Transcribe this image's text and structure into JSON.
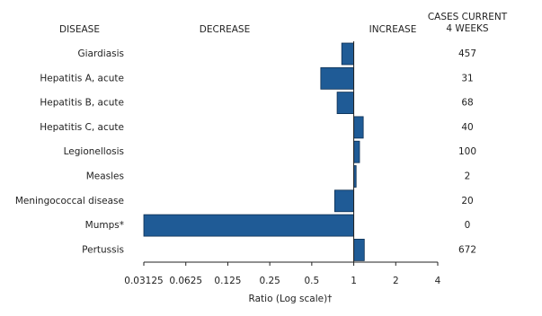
{
  "chart_data": {
    "type": "bar",
    "orientation": "horizontal",
    "log_scale": true,
    "category_header": "DISEASE",
    "decrease_label": "DECREASE",
    "increase_label": "INCREASE",
    "categories": [
      "Giardiasis",
      "Hepatitis A, acute",
      "Hepatitis B, acute",
      "Hepatitis C, acute",
      "Legionellosis",
      "Measles",
      "Meningococcal disease",
      "Mumps*",
      "Pertussis"
    ],
    "values": [
      0.82,
      0.58,
      0.76,
      1.17,
      1.1,
      1.04,
      0.73,
      0.03125,
      1.19
    ],
    "color": "#1f5b96",
    "cases_header": [
      "CASES CURRENT",
      "4 WEEKS"
    ],
    "cases": [
      457,
      31,
      68,
      40,
      100,
      2,
      20,
      0,
      672
    ],
    "xlim": [
      0.03125,
      4
    ],
    "xticks": [
      0.03125,
      0.0625,
      0.125,
      0.25,
      0.5,
      1,
      2,
      4
    ],
    "xlabel": "Ratio (Log scale)†"
  }
}
